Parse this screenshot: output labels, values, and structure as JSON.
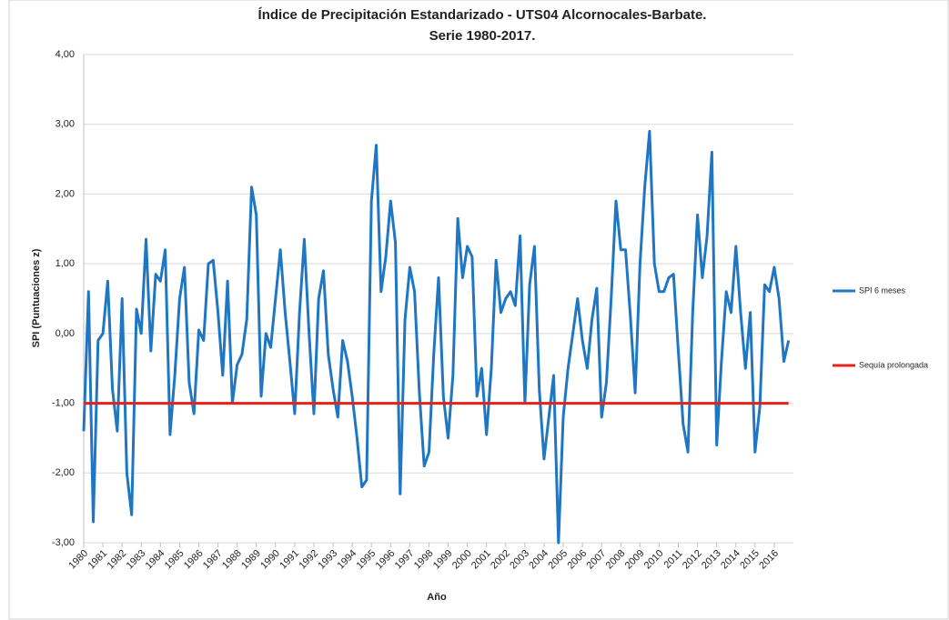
{
  "chart_data": {
    "type": "line",
    "title": "Índice de Precipitación Estandarizado - UTS04 Alcornocales-Barbate.",
    "subtitle": "Serie 1980-2017.",
    "x_label": "Año",
    "y_label": "SPI (Puntuaciones z)",
    "categories": [
      "1980",
      null,
      null,
      null,
      "1981",
      null,
      null,
      null,
      "1982",
      null,
      null,
      null,
      "1983",
      null,
      null,
      null,
      "1984",
      null,
      null,
      null,
      "1985",
      null,
      null,
      null,
      "1986",
      null,
      null,
      null,
      "1987",
      null,
      null,
      null,
      "1988",
      null,
      null,
      null,
      "1989",
      null,
      null,
      null,
      "1990",
      null,
      null,
      null,
      "1991",
      null,
      null,
      null,
      "1992",
      null,
      null,
      null,
      "1993",
      null,
      null,
      null,
      "1994",
      null,
      null,
      null,
      "1995",
      null,
      null,
      null,
      "1996",
      null,
      null,
      null,
      "1997",
      null,
      null,
      null,
      "1998",
      null,
      null,
      null,
      "1999",
      null,
      null,
      null,
      "2000",
      null,
      null,
      null,
      "2001",
      null,
      null,
      null,
      "2002",
      null,
      null,
      null,
      "2003",
      null,
      null,
      null,
      "2004",
      null,
      null,
      null,
      "2005",
      null,
      null,
      null,
      "2006",
      null,
      null,
      null,
      "2007",
      null,
      null,
      null,
      "2008",
      null,
      null,
      null,
      "2009",
      null,
      null,
      null,
      "2010",
      null,
      null,
      null,
      "2011",
      null,
      null,
      null,
      "2012",
      null,
      null,
      null,
      "2013",
      null,
      null,
      null,
      "2014",
      null,
      null,
      null,
      "2015",
      null,
      null,
      null,
      "2016",
      null,
      null,
      null
    ],
    "series": [
      {
        "name": "SPI 6 meses",
        "color": "#1f77c4",
        "width": 3,
        "values": [
          -1.4,
          0.6,
          -2.7,
          -0.1,
          0.0,
          0.75,
          -0.8,
          -1.4,
          0.5,
          -2.0,
          -2.6,
          0.35,
          0.0,
          1.35,
          -0.25,
          0.85,
          0.75,
          1.2,
          -1.45,
          -0.6,
          0.5,
          0.95,
          -0.7,
          -1.15,
          0.05,
          -0.1,
          1.0,
          1.05,
          0.3,
          -0.6,
          0.75,
          -1.0,
          -0.45,
          -0.3,
          0.2,
          2.1,
          1.7,
          -0.9,
          0.0,
          -0.2,
          0.5,
          1.2,
          0.3,
          -0.4,
          -1.15,
          0.3,
          1.35,
          0.0,
          -1.15,
          0.5,
          0.9,
          -0.3,
          -0.8,
          -1.2,
          -0.1,
          -0.4,
          -0.9,
          -1.5,
          -2.2,
          -2.1,
          1.9,
          2.7,
          0.6,
          1.1,
          1.9,
          1.3,
          -2.3,
          0.2,
          0.95,
          0.6,
          -0.85,
          -1.9,
          -1.7,
          -0.3,
          0.8,
          -0.9,
          -1.5,
          -0.6,
          1.65,
          0.8,
          1.25,
          1.1,
          -0.9,
          -0.5,
          -1.45,
          -0.5,
          1.05,
          0.3,
          0.5,
          0.6,
          0.4,
          1.4,
          -1.0,
          0.7,
          1.25,
          -0.8,
          -1.8,
          -1.2,
          -0.6,
          -3.0,
          -1.2,
          -0.5,
          0.0,
          0.5,
          -0.1,
          -0.5,
          0.2,
          0.65,
          -1.2,
          -0.7,
          0.5,
          1.9,
          1.2,
          1.2,
          0.25,
          -0.85,
          1.0,
          2.1,
          2.9,
          1.0,
          0.6,
          0.6,
          0.8,
          0.85,
          -0.25,
          -1.3,
          -1.7,
          0.3,
          1.7,
          0.8,
          1.4,
          2.6,
          -1.6,
          -0.4,
          0.6,
          0.3,
          1.25,
          0.3,
          -0.5,
          0.3,
          -1.7,
          -1.05,
          0.7,
          0.6,
          0.95,
          0.5,
          -0.4,
          -0.1
        ]
      },
      {
        "name": "Sequía prolongada",
        "color": "#e8201a",
        "width": 3,
        "values": [
          -1,
          -1,
          -1,
          -1,
          -1,
          -1,
          -1,
          -1,
          -1,
          -1,
          -1,
          -1,
          -1,
          -1,
          -1,
          -1,
          -1,
          -1,
          -1,
          -1,
          -1,
          -1,
          -1,
          -1,
          -1,
          -1,
          -1,
          -1,
          -1,
          -1,
          -1,
          -1,
          -1,
          -1,
          -1,
          -1,
          -1,
          -1,
          -1,
          -1,
          -1,
          -1,
          -1,
          -1,
          -1,
          -1,
          -1,
          -1,
          -1,
          -1,
          -1,
          -1,
          -1,
          -1,
          -1,
          -1,
          -1,
          -1,
          -1,
          -1,
          -1,
          -1,
          -1,
          -1,
          -1,
          -1,
          -1,
          -1,
          -1,
          -1,
          -1,
          -1,
          -1,
          -1,
          -1,
          -1,
          -1,
          -1,
          -1,
          -1,
          -1,
          -1,
          -1,
          -1,
          -1,
          -1,
          -1,
          -1,
          -1,
          -1,
          -1,
          -1,
          -1,
          -1,
          -1,
          -1,
          -1,
          -1,
          -1,
          -1,
          -1,
          -1,
          -1,
          -1,
          -1,
          -1,
          -1,
          -1,
          -1,
          -1,
          -1,
          -1,
          -1,
          -1,
          -1,
          -1,
          -1,
          -1,
          -1,
          -1,
          -1,
          -1,
          -1,
          -1,
          -1,
          -1,
          -1,
          -1,
          -1,
          -1,
          -1,
          -1,
          -1,
          -1,
          -1,
          -1,
          -1,
          -1,
          -1,
          -1,
          -1,
          -1,
          -1,
          -1,
          -1,
          -1,
          -1,
          -1
        ]
      }
    ],
    "ylim": [
      -3,
      4
    ],
    "yticks": [
      {
        "value": -3,
        "label": "-3,00"
      },
      {
        "value": -2,
        "label": "-2,00"
      },
      {
        "value": -1,
        "label": "-1,00"
      },
      {
        "value": 0,
        "label": "0,00"
      },
      {
        "value": 1,
        "label": "1,00"
      },
      {
        "value": 2,
        "label": "2,00"
      },
      {
        "value": 3,
        "label": "3,00"
      },
      {
        "value": 4,
        "label": "4,00"
      }
    ],
    "grid": true,
    "legend": "right"
  }
}
